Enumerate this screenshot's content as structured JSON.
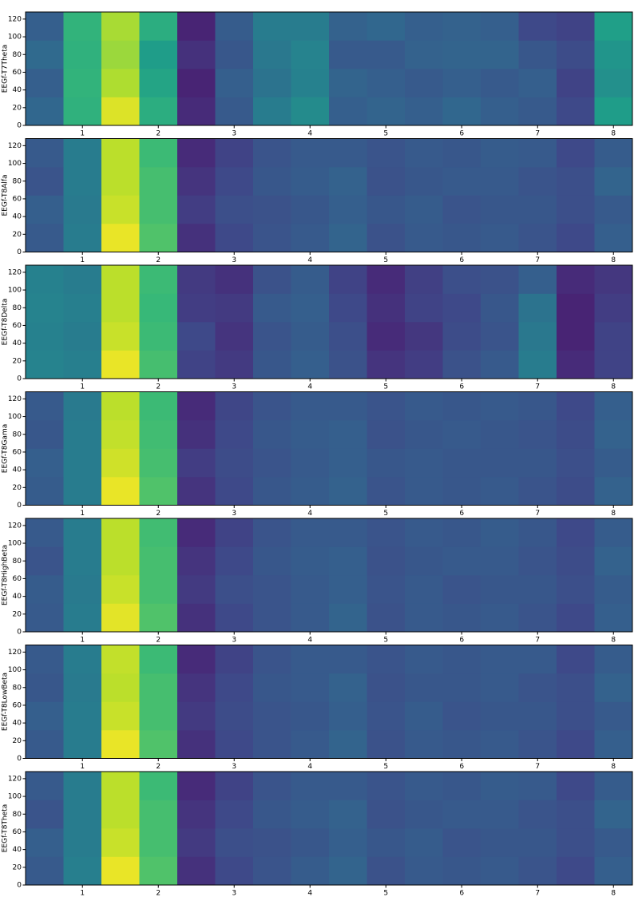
{
  "chart_data": [
    {
      "type": "heatmap",
      "ylabel": "EEGf-T7Theta",
      "colormap": "viridis",
      "clim": [
        0,
        1
      ],
      "x": [
        0.5,
        1,
        1.5,
        2,
        2.5,
        3,
        3.5,
        4,
        4.5,
        5,
        5.5,
        6,
        6.5,
        7,
        7.5,
        8
      ],
      "y_edges": [
        0,
        32,
        64,
        96,
        128
      ],
      "xlim": [
        0.25,
        8.25
      ],
      "xticks": [
        1,
        2,
        3,
        4,
        5,
        6,
        7,
        8
      ],
      "ylim": [
        0,
        128
      ],
      "yticks": [
        0,
        20,
        40,
        60,
        80,
        100,
        120
      ],
      "values": [
        [
          0.33,
          0.3,
          0.34,
          0.3
        ],
        [
          0.64,
          0.65,
          0.64,
          0.65
        ],
        [
          0.95,
          0.88,
          0.85,
          0.87
        ],
        [
          0.62,
          0.58,
          0.55,
          0.62
        ],
        [
          0.12,
          0.1,
          0.14,
          0.1
        ],
        [
          0.28,
          0.3,
          0.27,
          0.29
        ],
        [
          0.42,
          0.38,
          0.4,
          0.42
        ],
        [
          0.48,
          0.44,
          0.45,
          0.42
        ],
        [
          0.3,
          0.32,
          0.28,
          0.31
        ],
        [
          0.32,
          0.3,
          0.28,
          0.33
        ],
        [
          0.3,
          0.28,
          0.31,
          0.3
        ],
        [
          0.33,
          0.3,
          0.32,
          0.31
        ],
        [
          0.3,
          0.28,
          0.32,
          0.3
        ],
        [
          0.28,
          0.3,
          0.27,
          0.22
        ],
        [
          0.22,
          0.2,
          0.23,
          0.2
        ],
        [
          0.55,
          0.5,
          0.52,
          0.56
        ]
      ]
    },
    {
      "type": "heatmap",
      "ylabel": "EEGf-T8Alfa",
      "colormap": "viridis",
      "clim": [
        0,
        1
      ],
      "x": [
        0.5,
        1,
        1.5,
        2,
        2.5,
        3,
        3.5,
        4,
        4.5,
        5,
        5.5,
        6,
        6.5,
        7,
        7.5,
        8
      ],
      "y_edges": [
        0,
        32,
        64,
        96,
        128
      ],
      "xlim": [
        0.25,
        8.25
      ],
      "xticks": [
        1,
        2,
        3,
        4,
        5,
        6,
        7,
        8
      ],
      "ylim": [
        0,
        128
      ],
      "yticks": [
        0,
        20,
        40,
        60,
        80,
        100,
        120
      ],
      "values": [
        [
          0.28,
          0.3,
          0.26,
          0.28
        ],
        [
          0.42,
          0.41,
          0.42,
          0.42
        ],
        [
          0.97,
          0.92,
          0.9,
          0.9
        ],
        [
          0.72,
          0.7,
          0.7,
          0.68
        ],
        [
          0.14,
          0.18,
          0.15,
          0.12
        ],
        [
          0.22,
          0.24,
          0.22,
          0.2
        ],
        [
          0.26,
          0.25,
          0.27,
          0.26
        ],
        [
          0.28,
          0.27,
          0.29,
          0.28
        ],
        [
          0.32,
          0.3,
          0.31,
          0.28
        ],
        [
          0.25,
          0.27,
          0.25,
          0.26
        ],
        [
          0.28,
          0.29,
          0.27,
          0.28
        ],
        [
          0.27,
          0.26,
          0.28,
          0.27
        ],
        [
          0.28,
          0.27,
          0.28,
          0.29
        ],
        [
          0.26,
          0.27,
          0.26,
          0.28
        ],
        [
          0.22,
          0.24,
          0.24,
          0.22
        ],
        [
          0.3,
          0.28,
          0.32,
          0.29
        ]
      ]
    },
    {
      "type": "heatmap",
      "ylabel": "EEGf-T8Delta",
      "colormap": "viridis",
      "clim": [
        0,
        1
      ],
      "x": [
        0.5,
        1,
        1.5,
        2,
        2.5,
        3,
        3.5,
        4,
        4.5,
        5,
        5.5,
        6,
        6.5,
        7,
        7.5,
        8
      ],
      "y_edges": [
        0,
        32,
        64,
        96,
        128
      ],
      "xlim": [
        0.25,
        8.25
      ],
      "xticks": [
        1,
        2,
        3,
        4,
        5,
        6,
        7,
        8
      ],
      "ylim": [
        0,
        128
      ],
      "yticks": [
        0,
        20,
        40,
        60,
        80,
        100,
        120
      ],
      "values": [
        [
          0.45,
          0.44,
          0.45,
          0.44
        ],
        [
          0.43,
          0.42,
          0.43,
          0.42
        ],
        [
          0.97,
          0.92,
          0.9,
          0.9
        ],
        [
          0.7,
          0.68,
          0.67,
          0.68
        ],
        [
          0.2,
          0.22,
          0.18,
          0.17
        ],
        [
          0.17,
          0.15,
          0.17,
          0.14
        ],
        [
          0.27,
          0.26,
          0.28,
          0.25
        ],
        [
          0.3,
          0.29,
          0.3,
          0.29
        ],
        [
          0.25,
          0.24,
          0.22,
          0.2
        ],
        [
          0.15,
          0.12,
          0.14,
          0.12
        ],
        [
          0.18,
          0.16,
          0.2,
          0.19
        ],
        [
          0.25,
          0.23,
          0.22,
          0.24
        ],
        [
          0.28,
          0.26,
          0.27,
          0.25
        ],
        [
          0.42,
          0.4,
          0.38,
          0.3
        ],
        [
          0.12,
          0.1,
          0.1,
          0.12
        ],
        [
          0.2,
          0.2,
          0.18,
          0.16
        ]
      ]
    },
    {
      "type": "heatmap",
      "ylabel": "EEGf-T8Gama",
      "colormap": "viridis",
      "clim": [
        0,
        1
      ],
      "x": [
        0.5,
        1,
        1.5,
        2,
        2.5,
        3,
        3.5,
        4,
        4.5,
        5,
        5.5,
        6,
        6.5,
        7,
        7.5,
        8
      ],
      "y_edges": [
        0,
        32,
        64,
        96,
        128
      ],
      "xlim": [
        0.25,
        8.25
      ],
      "xticks": [
        1,
        2,
        3,
        4,
        5,
        6,
        7,
        8
      ],
      "ylim": [
        0,
        128
      ],
      "yticks": [
        0,
        20,
        40,
        60,
        80,
        100,
        120
      ],
      "values": [
        [
          0.29,
          0.3,
          0.27,
          0.28
        ],
        [
          0.42,
          0.42,
          0.42,
          0.41
        ],
        [
          0.97,
          0.93,
          0.91,
          0.9
        ],
        [
          0.72,
          0.7,
          0.69,
          0.68
        ],
        [
          0.15,
          0.18,
          0.14,
          0.12
        ],
        [
          0.22,
          0.23,
          0.22,
          0.21
        ],
        [
          0.27,
          0.26,
          0.27,
          0.26
        ],
        [
          0.29,
          0.28,
          0.29,
          0.28
        ],
        [
          0.31,
          0.3,
          0.3,
          0.28
        ],
        [
          0.26,
          0.27,
          0.25,
          0.26
        ],
        [
          0.28,
          0.28,
          0.27,
          0.28
        ],
        [
          0.27,
          0.27,
          0.28,
          0.27
        ],
        [
          0.28,
          0.27,
          0.27,
          0.28
        ],
        [
          0.26,
          0.27,
          0.26,
          0.27
        ],
        [
          0.23,
          0.24,
          0.23,
          0.22
        ],
        [
          0.31,
          0.29,
          0.31,
          0.3
        ]
      ]
    },
    {
      "type": "heatmap",
      "ylabel": "EEGf-T8HighBeta",
      "colormap": "viridis",
      "clim": [
        0,
        1
      ],
      "x": [
        0.5,
        1,
        1.5,
        2,
        2.5,
        3,
        3.5,
        4,
        4.5,
        5,
        5.5,
        6,
        6.5,
        7,
        7.5,
        8
      ],
      "y_edges": [
        0,
        32,
        64,
        96,
        128
      ],
      "xlim": [
        0.25,
        8.25
      ],
      "xticks": [
        1,
        2,
        3,
        4,
        5,
        6,
        7,
        8
      ],
      "ylim": [
        0,
        128
      ],
      "yticks": [
        0,
        20,
        40,
        60,
        80,
        100,
        120
      ],
      "values": [
        [
          0.28,
          0.29,
          0.26,
          0.28
        ],
        [
          0.42,
          0.41,
          0.42,
          0.42
        ],
        [
          0.96,
          0.92,
          0.9,
          0.9
        ],
        [
          0.72,
          0.7,
          0.7,
          0.69
        ],
        [
          0.14,
          0.17,
          0.15,
          0.12
        ],
        [
          0.22,
          0.24,
          0.22,
          0.2
        ],
        [
          0.26,
          0.26,
          0.27,
          0.26
        ],
        [
          0.28,
          0.28,
          0.29,
          0.28
        ],
        [
          0.32,
          0.3,
          0.3,
          0.28
        ],
        [
          0.25,
          0.26,
          0.25,
          0.26
        ],
        [
          0.28,
          0.28,
          0.27,
          0.28
        ],
        [
          0.27,
          0.26,
          0.28,
          0.27
        ],
        [
          0.28,
          0.27,
          0.28,
          0.29
        ],
        [
          0.26,
          0.27,
          0.26,
          0.27
        ],
        [
          0.22,
          0.24,
          0.23,
          0.22
        ],
        [
          0.3,
          0.29,
          0.31,
          0.29
        ]
      ]
    },
    {
      "type": "heatmap",
      "ylabel": "EEGf-T8LowBeta",
      "colormap": "viridis",
      "clim": [
        0,
        1
      ],
      "x": [
        0.5,
        1,
        1.5,
        2,
        2.5,
        3,
        3.5,
        4,
        4.5,
        5,
        5.5,
        6,
        6.5,
        7,
        7.5,
        8
      ],
      "y_edges": [
        0,
        32,
        64,
        96,
        128
      ],
      "xlim": [
        0.25,
        8.25
      ],
      "xticks": [
        1,
        2,
        3,
        4,
        5,
        6,
        7,
        8
      ],
      "ylim": [
        0,
        128
      ],
      "yticks": [
        0,
        20,
        40,
        60,
        80,
        100,
        120
      ],
      "values": [
        [
          0.28,
          0.3,
          0.27,
          0.28
        ],
        [
          0.42,
          0.42,
          0.41,
          0.42
        ],
        [
          0.97,
          0.92,
          0.9,
          0.91
        ],
        [
          0.72,
          0.7,
          0.7,
          0.68
        ],
        [
          0.14,
          0.17,
          0.15,
          0.12
        ],
        [
          0.22,
          0.23,
          0.22,
          0.2
        ],
        [
          0.26,
          0.26,
          0.27,
          0.26
        ],
        [
          0.28,
          0.27,
          0.28,
          0.28
        ],
        [
          0.32,
          0.3,
          0.31,
          0.28
        ],
        [
          0.25,
          0.26,
          0.25,
          0.26
        ],
        [
          0.28,
          0.29,
          0.27,
          0.28
        ],
        [
          0.27,
          0.26,
          0.27,
          0.27
        ],
        [
          0.28,
          0.27,
          0.28,
          0.28
        ],
        [
          0.26,
          0.27,
          0.26,
          0.28
        ],
        [
          0.22,
          0.24,
          0.24,
          0.22
        ],
        [
          0.3,
          0.28,
          0.31,
          0.29
        ]
      ]
    },
    {
      "type": "heatmap",
      "ylabel": "EEGf-T8Theta",
      "colormap": "viridis",
      "clim": [
        0,
        1
      ],
      "x": [
        0.5,
        1,
        1.5,
        2,
        2.5,
        3,
        3.5,
        4,
        4.5,
        5,
        5.5,
        6,
        6.5,
        7,
        7.5,
        8
      ],
      "y_edges": [
        0,
        32,
        64,
        96,
        128
      ],
      "xlim": [
        0.25,
        8.25
      ],
      "xticks": [
        1,
        2,
        3,
        4,
        5,
        6,
        7,
        8
      ],
      "ylim": [
        0,
        128
      ],
      "yticks": [
        0,
        20,
        40,
        60,
        80,
        100,
        120
      ],
      "values": [
        [
          0.28,
          0.3,
          0.26,
          0.28
        ],
        [
          0.43,
          0.42,
          0.42,
          0.42
        ],
        [
          0.97,
          0.92,
          0.9,
          0.9
        ],
        [
          0.72,
          0.7,
          0.7,
          0.68
        ],
        [
          0.14,
          0.17,
          0.15,
          0.12
        ],
        [
          0.22,
          0.24,
          0.22,
          0.2
        ],
        [
          0.26,
          0.25,
          0.27,
          0.26
        ],
        [
          0.29,
          0.27,
          0.29,
          0.28
        ],
        [
          0.32,
          0.3,
          0.31,
          0.28
        ],
        [
          0.25,
          0.27,
          0.25,
          0.26
        ],
        [
          0.28,
          0.29,
          0.27,
          0.28
        ],
        [
          0.27,
          0.26,
          0.28,
          0.27
        ],
        [
          0.28,
          0.27,
          0.28,
          0.29
        ],
        [
          0.26,
          0.27,
          0.26,
          0.28
        ],
        [
          0.22,
          0.24,
          0.24,
          0.22
        ],
        [
          0.3,
          0.28,
          0.32,
          0.29
        ]
      ]
    }
  ]
}
